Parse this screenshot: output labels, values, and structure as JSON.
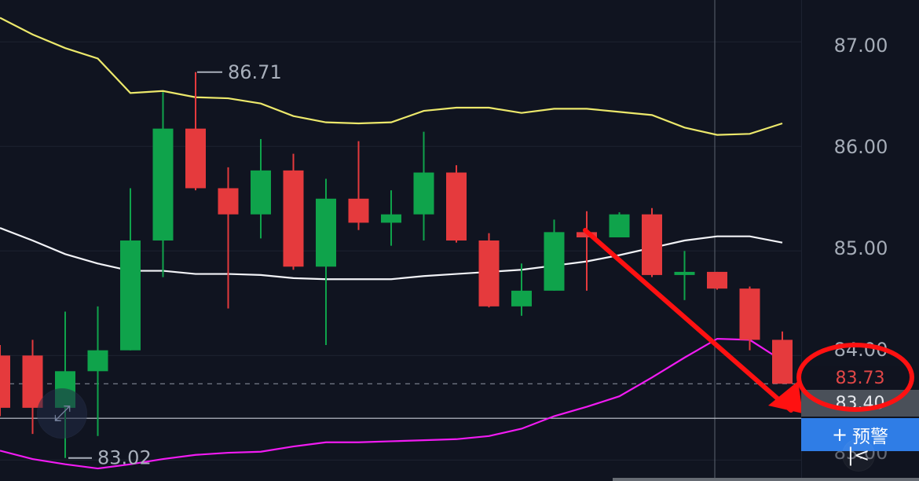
{
  "chart_data": {
    "type": "line",
    "ylim": [
      82.8,
      87.4
    ],
    "y_ticks": [
      "87.00",
      "86.00",
      "85.00",
      "84.00",
      "83.40",
      "83.00"
    ],
    "annotations": {
      "high_label": "86.71",
      "low_label": "83.02",
      "current_price": "83.73"
    },
    "grid": true,
    "candles": [
      {
        "open": 84.0,
        "close": 83.5,
        "high": 84.1,
        "low": 83.42
      },
      {
        "open": 84.0,
        "close": 83.5,
        "high": 84.15,
        "low": 83.25
      },
      {
        "open": 83.5,
        "close": 83.85,
        "high": 84.42,
        "low": 83.02
      },
      {
        "open": 83.85,
        "close": 84.05,
        "high": 84.47,
        "low": 83.23
      },
      {
        "open": 84.05,
        "close": 85.1,
        "high": 85.6,
        "low": 84.05
      },
      {
        "open": 85.1,
        "close": 86.17,
        "high": 86.52,
        "low": 84.75
      },
      {
        "open": 86.17,
        "close": 85.6,
        "high": 86.71,
        "low": 85.58
      },
      {
        "open": 85.6,
        "close": 85.35,
        "high": 85.8,
        "low": 84.45
      },
      {
        "open": 85.35,
        "close": 85.77,
        "high": 86.07,
        "low": 85.12
      },
      {
        "open": 85.77,
        "close": 84.85,
        "high": 85.93,
        "low": 84.82
      },
      {
        "open": 84.85,
        "close": 85.5,
        "high": 85.69,
        "low": 84.1
      },
      {
        "open": 85.5,
        "close": 85.27,
        "high": 86.05,
        "low": 85.2
      },
      {
        "open": 85.27,
        "close": 85.35,
        "high": 85.58,
        "low": 85.05
      },
      {
        "open": 85.35,
        "close": 85.75,
        "high": 86.14,
        "low": 85.1
      },
      {
        "open": 85.75,
        "close": 85.1,
        "high": 85.82,
        "low": 85.08
      },
      {
        "open": 85.1,
        "close": 84.47,
        "high": 85.17,
        "low": 84.46
      },
      {
        "open": 84.47,
        "close": 84.62,
        "high": 84.88,
        "low": 84.38
      },
      {
        "open": 84.62,
        "close": 85.18,
        "high": 85.3,
        "low": 84.62
      },
      {
        "open": 85.18,
        "close": 85.13,
        "high": 85.38,
        "low": 84.62
      },
      {
        "open": 85.13,
        "close": 85.35,
        "high": 85.37,
        "low": 85.13
      },
      {
        "open": 85.35,
        "close": 84.77,
        "high": 85.41,
        "low": 84.75
      },
      {
        "open": 84.77,
        "close": 84.8,
        "high": 85.0,
        "low": 84.53
      },
      {
        "open": 84.8,
        "close": 84.64,
        "high": 84.8,
        "low": 84.63
      },
      {
        "open": 84.64,
        "close": 84.15,
        "high": 84.66,
        "low": 84.05
      },
      {
        "open": 84.15,
        "close": 83.73,
        "high": 84.23,
        "low": 83.73
      }
    ],
    "series": [
      {
        "values": [
          87.23,
          87.07,
          86.94,
          86.84,
          86.51,
          86.53,
          86.47,
          86.46,
          86.41,
          86.29,
          86.23,
          86.22,
          86.23,
          86.34,
          86.37,
          86.37,
          86.32,
          86.36,
          86.36,
          86.33,
          86.3,
          86.18,
          86.11,
          86.12,
          86.22
        ],
        "color": "#ece86b"
      },
      {
        "values": [
          85.22,
          85.1,
          84.97,
          84.88,
          84.81,
          84.81,
          84.78,
          84.78,
          84.77,
          84.74,
          84.73,
          84.73,
          84.73,
          84.76,
          84.78,
          84.8,
          84.82,
          84.86,
          84.9,
          84.96,
          85.03,
          85.1,
          85.14,
          85.14,
          85.08
        ],
        "color": "#f2f3f7"
      },
      {
        "values": [
          83.09,
          83.01,
          82.96,
          82.92,
          82.96,
          83.01,
          83.05,
          83.07,
          83.08,
          83.13,
          83.17,
          83.17,
          83.18,
          83.19,
          83.2,
          83.23,
          83.3,
          83.42,
          83.51,
          83.61,
          83.79,
          83.98,
          84.16,
          84.15,
          83.95
        ],
        "color": "#f11bf2"
      }
    ],
    "x": [
      0,
      1,
      2,
      3,
      4,
      5,
      6,
      7,
      8,
      9,
      10,
      11,
      12,
      13,
      14,
      15,
      16,
      17,
      18,
      19,
      20,
      21,
      22,
      23,
      24
    ]
  },
  "ui": {
    "alert_button_label": "+ 预警",
    "alert_plus": "+",
    "alert_text": "预警",
    "back_icon": "|<",
    "expand_icon": "⤢"
  },
  "colors": {
    "bg": "#101420",
    "grid": "#1d2231",
    "green": "#0fa34b",
    "red": "#e53a3d",
    "yellow": "#ece86b",
    "white": "#f2f3f7",
    "magenta": "#f11bf2",
    "guide": "#a9afba",
    "arrow": "#ff1111"
  }
}
